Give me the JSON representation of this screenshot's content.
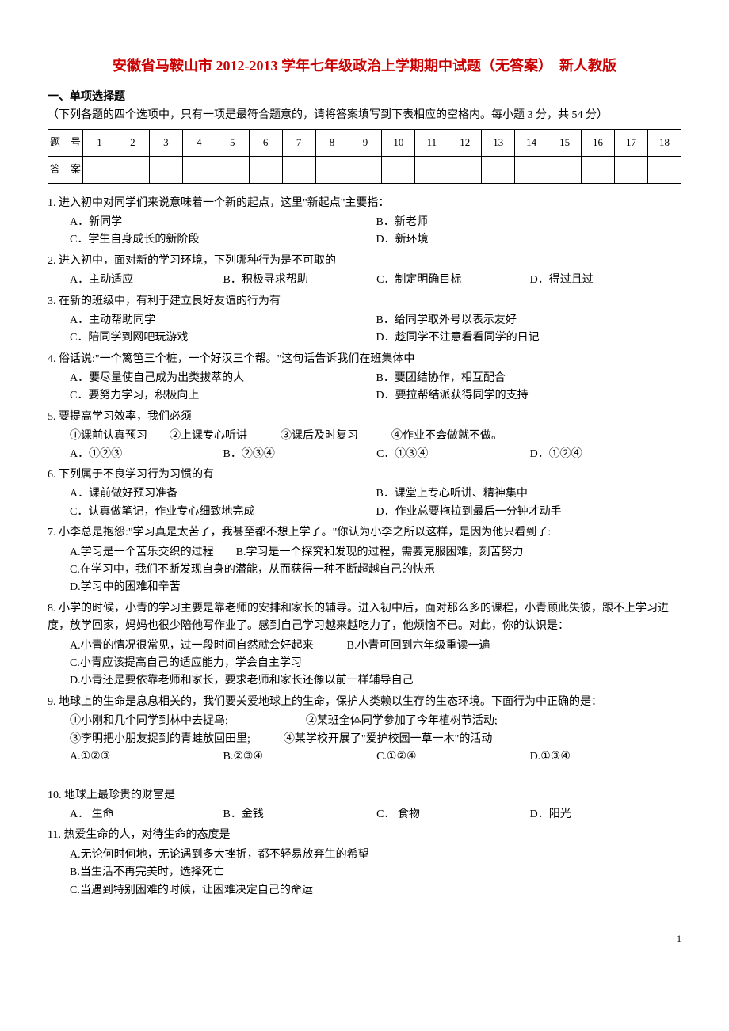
{
  "title": "安徽省马鞍山市 2012-2013 学年七年级政治上学期期中试题（无答案）　新人教版",
  "section1": {
    "heading_bold": "一、单项选择题",
    "heading_rest": "（下列各题的四个选项中，只有一项是最符合题意的，请将答案填写到下表相应的空格内。每小题 3 分，共 54 分）"
  },
  "answer_table": {
    "row1_label": "题　号",
    "row2_label": "答　案",
    "cols": [
      "1",
      "2",
      "3",
      "4",
      "5",
      "6",
      "7",
      "8",
      "9",
      "10",
      "11",
      "12",
      "13",
      "14",
      "15",
      "16",
      "17",
      "18"
    ]
  },
  "q1": {
    "text": "1. 进入初中对同学们来说意味着一个新的起点，这里\"新起点\"主要指：",
    "A": "A．新同学",
    "B": "B．新老师",
    "C": "C．学生自身成长的新阶段",
    "D": "D．新环境"
  },
  "q2": {
    "text": "2. 进入初中，面对新的学习环境，下列哪种行为是不可取的",
    "A": "A．主动适应",
    "B": "B．积极寻求帮助",
    "C": "C．制定明确目标",
    "D": "D．得过且过"
  },
  "q3": {
    "text": "3. 在新的班级中，有利于建立良好友谊的行为有",
    "A": "A．主动帮助同学",
    "B": "B．给同学取外号以表示友好",
    "C": "C．陪同学到网吧玩游戏",
    "D": "D．趁同学不注意看看同学的日记"
  },
  "q4": {
    "text": "4. 俗话说:\"一个篱笆三个桩，一个好汉三个帮。\"这句话告诉我们在班集体中",
    "A": "A．要尽量使自己成为出类拔萃的人",
    "B": "B．要团结协作，相互配合",
    "C": "C．要努力学习，积极向上",
    "D": "D．要拉帮结派获得同学的支持"
  },
  "q5": {
    "text": "5. 要提高学习效率，我们必须",
    "items": "①课前认真预习　　②上课专心听讲　　　③课后及时复习　　　④作业不会做就不做。",
    "A": "A．①②③",
    "B": "B．②③④",
    "C": "C．①③④",
    "D": "D．①②④"
  },
  "q6": {
    "text": "6. 下列属于不良学习行为习惯的有",
    "A": "A．课前做好预习准备",
    "B": "B．课堂上专心听讲、精神集中",
    "C": "C．认真做笔记，作业专心细致地完成",
    "D": "D．作业总要拖拉到最后一分钟才动手"
  },
  "q7": {
    "text": "7. 小李总是抱怨:\"学习真是太苦了，我甚至都不想上学了。\"你认为小李之所以这样，是因为他只看到了:",
    "A": "A.学习是一个苦乐交织的过程　　B.学习是一个探究和发现的过程，需要克服困难，刻苦努力",
    "C": "C.在学习中，我们不断发现自身的潜能，从而获得一种不断超越自己的快乐",
    "D": "D.学习中的困难和辛苦"
  },
  "q8": {
    "text": "8. 小学的时候，小青的学习主要是靠老师的安排和家长的辅导。进入初中后，面对那么多的课程，小青顾此失彼，跟不上学习进度，放学回家，妈妈也很少陪他写作业了。感到自己学习越来越吃力了，他烦恼不已。对此，你的认识是：",
    "A": "A.小青的情况很常见，过一段时间自然就会好起来　　　B.小青可回到六年级重读一遍",
    "C": "C.小青应该提高自己的适应能力，学会自主学习",
    "D": "D.小青还是要依靠老师和家长，要求老师和家长还像以前一样辅导自己"
  },
  "q9": {
    "text": "9. 地球上的生命是息息相关的，我们要关爱地球上的生命，保护人类赖以生存的生态环境。下面行为中正确的是：",
    "items1": "①小刚和几个同学到林中去捉鸟;　　　　　　　②某班全体同学参加了今年植树节活动;",
    "items2": "③李明把小朋友捉到的青蛙放回田里;　　　④某学校开展了\"爱护校园一草一木\"的活动",
    "A": "A.①②③",
    "B": "B.②③④",
    "C": "C.①②④",
    "D": "D.①③④"
  },
  "q10": {
    "text": "10. 地球上最珍贵的财富是",
    "A": "A． 生命",
    "B": "B．金钱",
    "C": "C． 食物",
    "D": "D．阳光"
  },
  "q11": {
    "text": "11. 热爱生命的人，对待生命的态度是",
    "A": "A.无论何时何地，无论遇到多大挫折，都不轻易放弃生的希望",
    "B": "B.当生活不再完美时，选择死亡",
    "C": "C.当遇到特别困难的时候，让困难决定自己的命运"
  },
  "page_number": "1"
}
